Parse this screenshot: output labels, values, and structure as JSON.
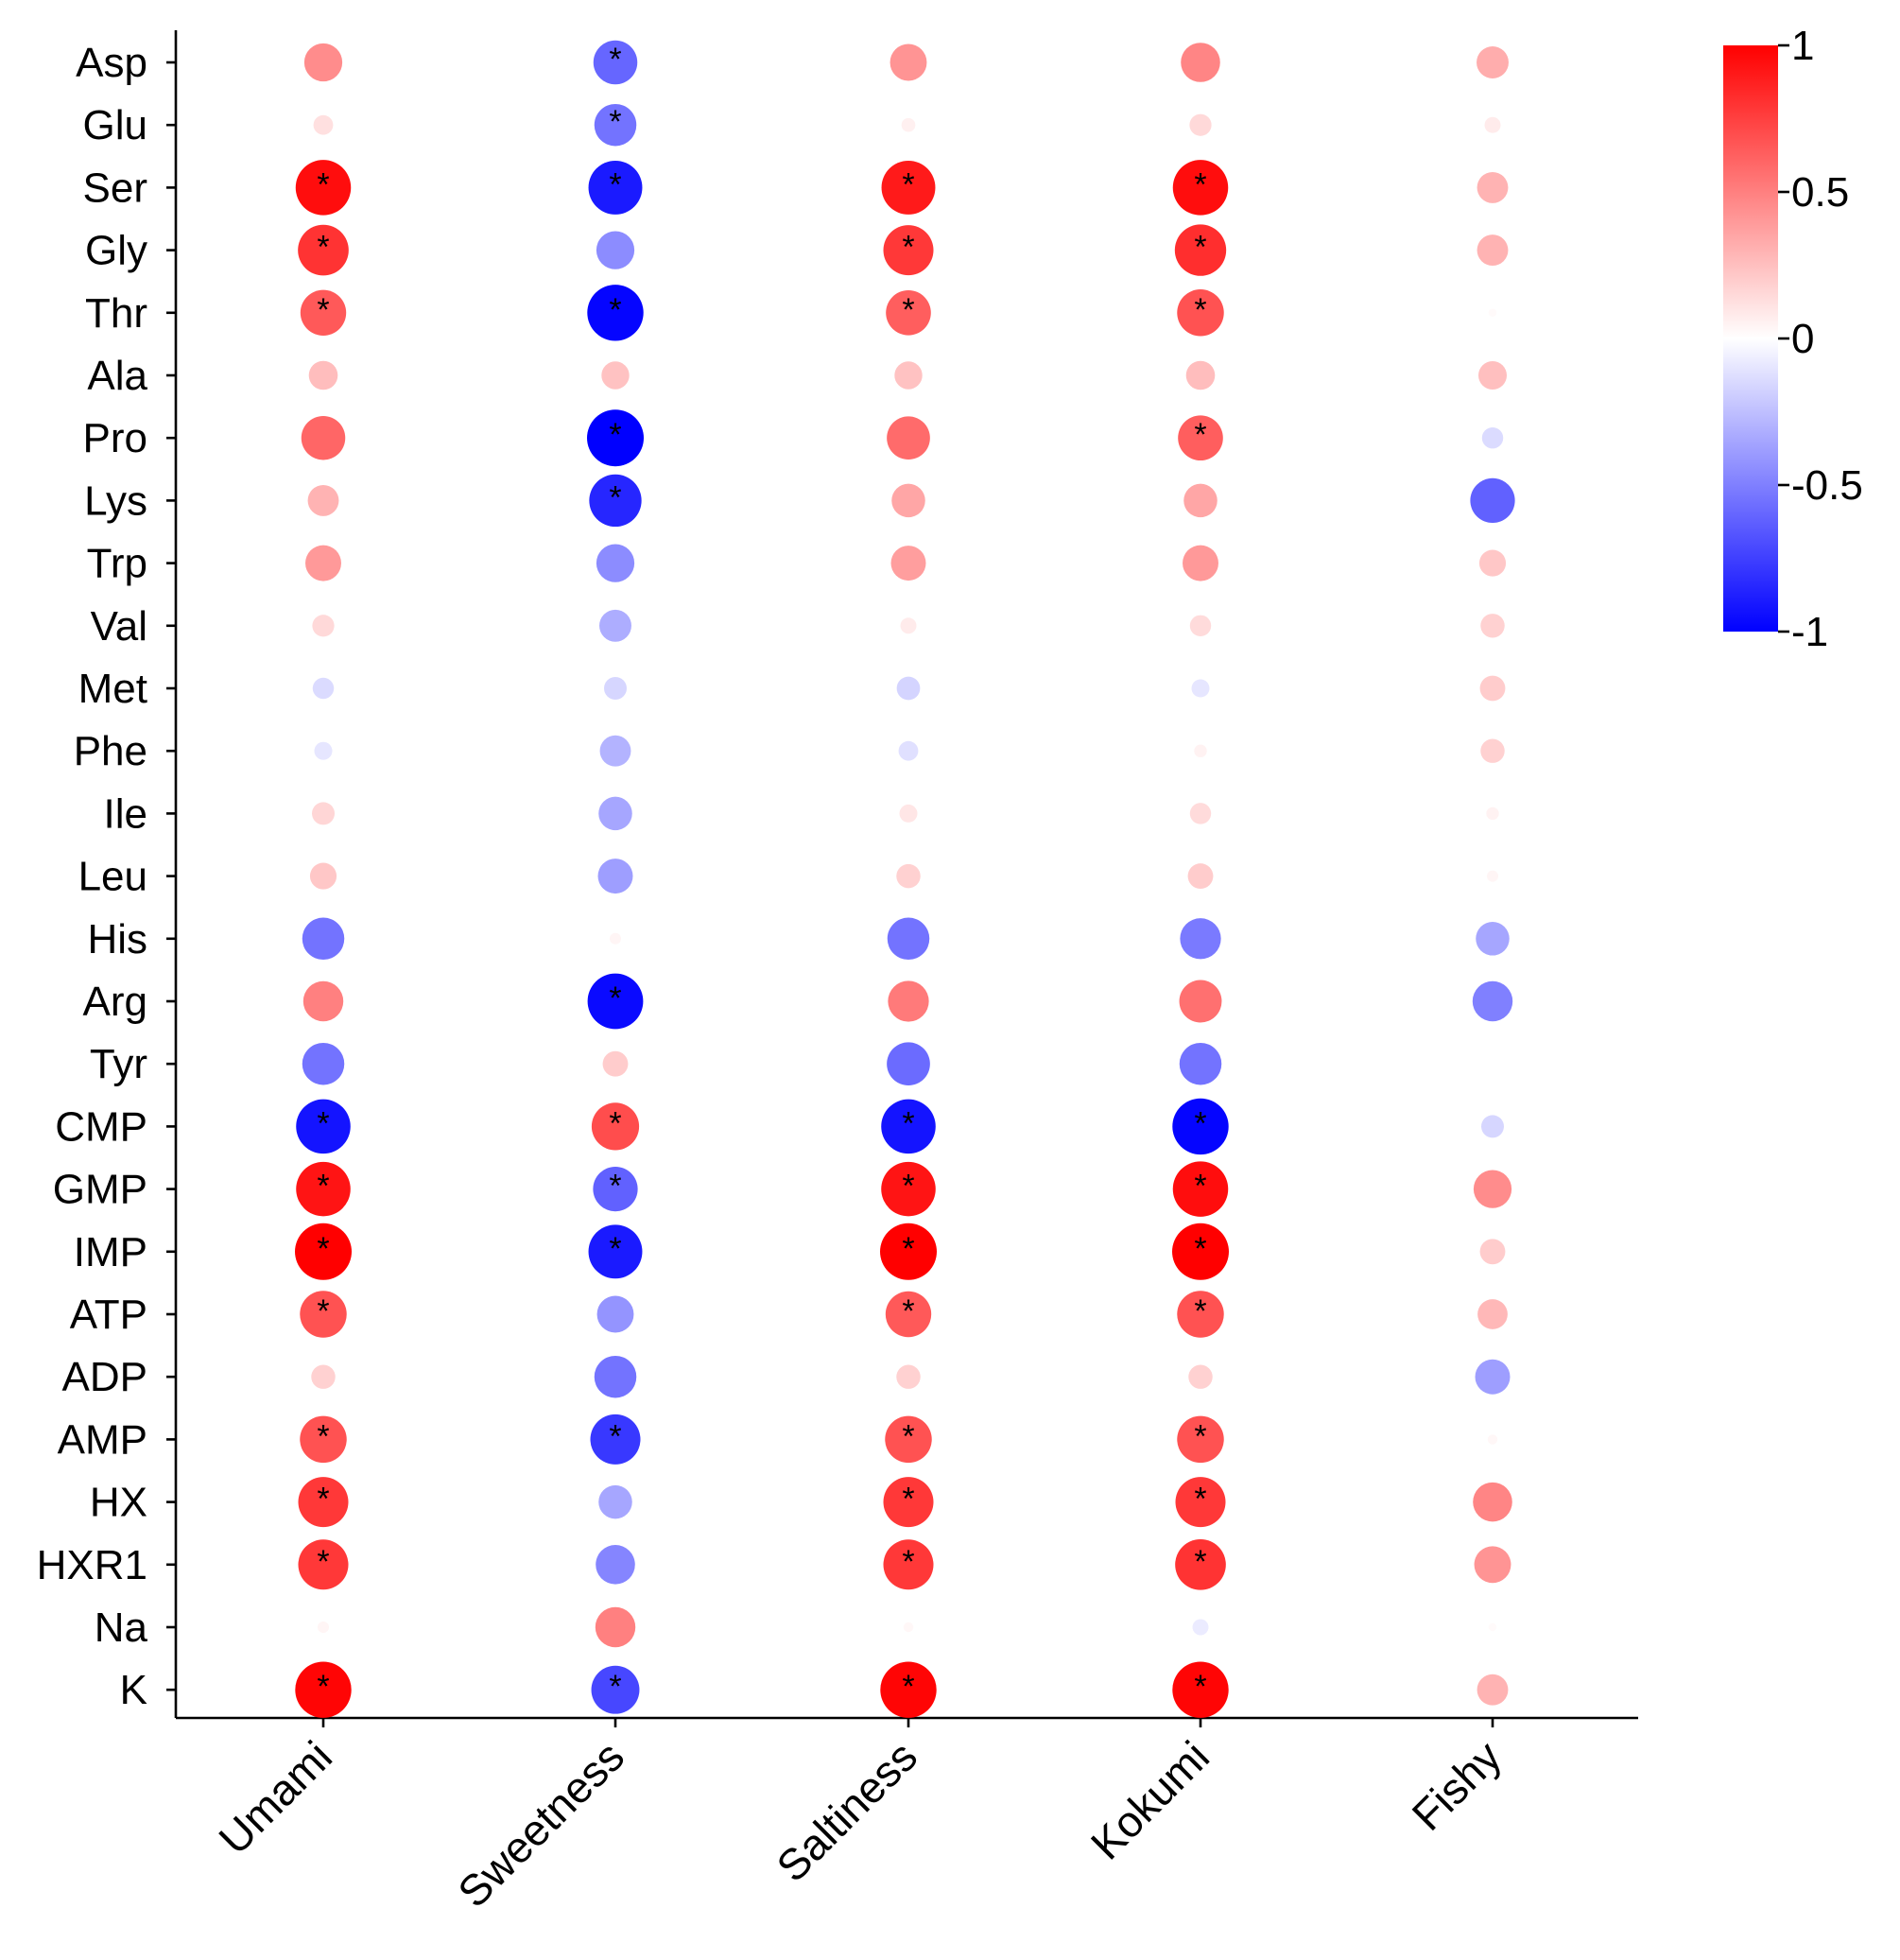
{
  "chart_data": {
    "type": "bubble-correlation-heatmap",
    "rows": [
      "Asp",
      "Glu",
      "Ser",
      "Gly",
      "Thr",
      "Ala",
      "Pro",
      "Lys",
      "Trp",
      "Val",
      "Met",
      "Phe",
      "Ile",
      "Leu",
      "His",
      "Arg",
      "Tyr",
      "CMP",
      "GMP",
      "IMP",
      "ATP",
      "ADP",
      "AMP",
      "HX",
      "HXR1",
      "Na",
      "K"
    ],
    "columns": [
      "Umami",
      "Sweetness",
      "Saltiness",
      "Kokumi",
      "Fishy"
    ],
    "values": [
      [
        0.45,
        -0.6,
        0.42,
        0.48,
        0.32
      ],
      [
        0.12,
        -0.55,
        0.06,
        0.15,
        0.08
      ],
      [
        0.95,
        -0.9,
        0.9,
        0.95,
        0.3
      ],
      [
        0.8,
        -0.45,
        0.78,
        0.82,
        0.3
      ],
      [
        0.65,
        -0.98,
        0.63,
        0.68,
        0.02
      ],
      [
        0.26,
        0.24,
        0.24,
        0.26,
        0.25
      ],
      [
        0.6,
        -1.0,
        0.58,
        0.63,
        -0.14
      ],
      [
        0.3,
        -0.85,
        0.35,
        0.35,
        -0.62
      ],
      [
        0.4,
        -0.45,
        0.38,
        0.4,
        0.22
      ],
      [
        0.15,
        -0.32,
        0.08,
        0.14,
        0.18
      ],
      [
        -0.14,
        -0.16,
        -0.17,
        -0.1,
        0.2
      ],
      [
        -0.1,
        -0.3,
        -0.12,
        0.05,
        0.18
      ],
      [
        0.16,
        -0.35,
        0.1,
        0.14,
        0.05
      ],
      [
        0.22,
        -0.38,
        0.18,
        0.2,
        0.04
      ],
      [
        -0.55,
        0.04,
        -0.55,
        -0.52,
        -0.35
      ],
      [
        0.5,
        -0.96,
        0.52,
        0.56,
        -0.5
      ],
      [
        -0.55,
        0.2,
        -0.58,
        -0.55,
        0.0
      ],
      [
        -0.92,
        0.7,
        -0.92,
        -0.98,
        -0.16
      ],
      [
        0.92,
        -0.62,
        0.92,
        0.95,
        0.45
      ],
      [
        1.0,
        -0.9,
        1.0,
        1.0,
        0.2
      ],
      [
        0.68,
        -0.42,
        0.65,
        0.68,
        0.28
      ],
      [
        0.18,
        -0.55,
        0.18,
        0.18,
        -0.38
      ],
      [
        0.68,
        -0.78,
        0.68,
        0.68,
        0.03
      ],
      [
        0.78,
        -0.35,
        0.78,
        0.78,
        0.48
      ],
      [
        0.78,
        -0.48,
        0.78,
        0.8,
        0.42
      ],
      [
        0.04,
        0.5,
        0.03,
        -0.08,
        0.02
      ],
      [
        0.98,
        -0.72,
        0.98,
        0.98,
        0.3
      ]
    ],
    "significant": [
      [
        false,
        true,
        false,
        false,
        false
      ],
      [
        false,
        true,
        false,
        false,
        false
      ],
      [
        true,
        true,
        true,
        true,
        false
      ],
      [
        true,
        false,
        true,
        true,
        false
      ],
      [
        true,
        true,
        true,
        true,
        false
      ],
      [
        false,
        false,
        false,
        false,
        false
      ],
      [
        false,
        true,
        false,
        true,
        false
      ],
      [
        false,
        true,
        false,
        false,
        false
      ],
      [
        false,
        false,
        false,
        false,
        false
      ],
      [
        false,
        false,
        false,
        false,
        false
      ],
      [
        false,
        false,
        false,
        false,
        false
      ],
      [
        false,
        false,
        false,
        false,
        false
      ],
      [
        false,
        false,
        false,
        false,
        false
      ],
      [
        false,
        false,
        false,
        false,
        false
      ],
      [
        false,
        false,
        false,
        false,
        false
      ],
      [
        false,
        true,
        false,
        false,
        false
      ],
      [
        false,
        false,
        false,
        false,
        false
      ],
      [
        true,
        true,
        true,
        true,
        false
      ],
      [
        true,
        true,
        true,
        true,
        false
      ],
      [
        true,
        true,
        true,
        true,
        false
      ],
      [
        true,
        false,
        true,
        true,
        false
      ],
      [
        false,
        false,
        false,
        false,
        false
      ],
      [
        true,
        true,
        true,
        true,
        false
      ],
      [
        true,
        false,
        true,
        true,
        false
      ],
      [
        true,
        false,
        true,
        true,
        false
      ],
      [
        false,
        false,
        false,
        false,
        false
      ],
      [
        true,
        true,
        true,
        true,
        false
      ]
    ],
    "significance_marker": "*",
    "colorbar": {
      "range": [
        -1,
        1
      ],
      "ticks": [
        "1",
        "0.5",
        "0",
        "-0.5",
        "-1"
      ],
      "low_color": "#0000ff",
      "mid_color": "#ffffff",
      "high_color": "#ff0000"
    },
    "title": "",
    "xlabel": "",
    "ylabel": ""
  }
}
